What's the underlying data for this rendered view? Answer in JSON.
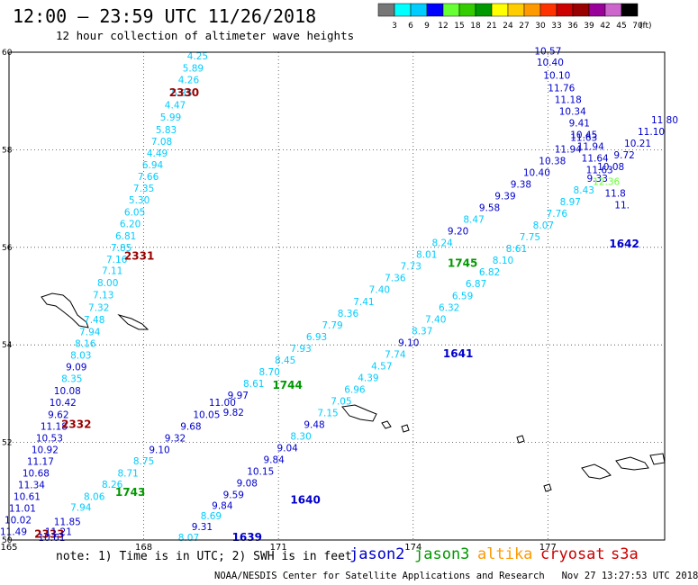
{
  "title": "12:00 – 23:59 UTC 11/26/2018",
  "subtitle": "12 hour collection of altimeter wave heights",
  "colorbar": {
    "unit": "(ft)",
    "ticks": [
      "3",
      "6",
      "9",
      "12",
      "15",
      "18",
      "21",
      "24",
      "27",
      "30",
      "33",
      "36",
      "39",
      "42",
      "45",
      "70"
    ],
    "colors": [
      "#777777",
      "#00ffff",
      "#00ccff",
      "#0000ff",
      "#66ff33",
      "#33cc00",
      "#009900",
      "#ffff00",
      "#ffcc00",
      "#ff9900",
      "#ff3300",
      "#cc0000",
      "#990000",
      "#990099",
      "#cc66cc",
      "#000000"
    ]
  },
  "axes": {
    "lon_ticks": [
      "165",
      "168",
      "171",
      "174",
      "177"
    ],
    "lat_ticks": [
      "60",
      "58",
      "56",
      "54",
      "52",
      "50"
    ]
  },
  "note": "note: 1) Time is in UTC; 2) SWH is in feet",
  "legend": [
    {
      "label": "jason2",
      "color": "#0000cc"
    },
    {
      "label": "jason3",
      "color": "#009900"
    },
    {
      "label": "altika",
      "color": "#ff9900"
    },
    {
      "label": "cryosat",
      "color": "#cc0000"
    },
    {
      "label": "s3a",
      "color": "#cc0000"
    }
  ],
  "credit": "NOAA/NESDIS Center for Satellite Applications and Research   Nov 27 13:27:53 UTC 2018",
  "tracks": [
    {
      "id": "cryosat-2330-2333",
      "time_labels": [
        {
          "text": "2330",
          "lon": 168.9,
          "lat": 59.1,
          "color": "#990000"
        },
        {
          "text": "2331",
          "lon": 167.9,
          "lat": 55.75,
          "color": "#990000"
        },
        {
          "text": "2332",
          "lon": 166.5,
          "lat": 52.3,
          "color": "#990000"
        },
        {
          "text": "2333",
          "lon": 165.9,
          "lat": 50.05,
          "color": "#990000"
        }
      ],
      "values": [
        {
          "v": "4.25",
          "lon": 169.2,
          "lat": 59.85,
          "color": "#00ccff"
        },
        {
          "v": "5.89",
          "lon": 169.1,
          "lat": 59.6,
          "color": "#00ccff"
        },
        {
          "v": "4.26",
          "lon": 169.0,
          "lat": 59.36,
          "color": "#00ccff"
        },
        {
          "v": "5.35",
          "lon": 168.85,
          "lat": 59.1,
          "color": "#00ccff"
        },
        {
          "v": "4.47",
          "lon": 168.7,
          "lat": 58.85,
          "color": "#00ccff"
        },
        {
          "v": "5.99",
          "lon": 168.6,
          "lat": 58.6,
          "color": "#00ccff"
        },
        {
          "v": "5.83",
          "lon": 168.5,
          "lat": 58.34,
          "color": "#00ccff"
        },
        {
          "v": "7.08",
          "lon": 168.4,
          "lat": 58.1,
          "color": "#00ccff"
        },
        {
          "v": "4.49",
          "lon": 168.3,
          "lat": 57.86,
          "color": "#00ccff"
        },
        {
          "v": "6.94",
          "lon": 168.2,
          "lat": 57.62,
          "color": "#00ccff"
        },
        {
          "v": "7.66",
          "lon": 168.1,
          "lat": 57.38,
          "color": "#00ccff"
        },
        {
          "v": "7.35",
          "lon": 168.0,
          "lat": 57.14,
          "color": "#00ccff"
        },
        {
          "v": "5.30",
          "lon": 167.9,
          "lat": 56.9,
          "color": "#00ccff"
        },
        {
          "v": "6.05",
          "lon": 167.8,
          "lat": 56.65,
          "color": "#00ccff"
        },
        {
          "v": "6.20",
          "lon": 167.7,
          "lat": 56.41,
          "color": "#00ccff"
        },
        {
          "v": "6.81",
          "lon": 167.6,
          "lat": 56.16,
          "color": "#00ccff"
        },
        {
          "v": "7.85",
          "lon": 167.5,
          "lat": 55.92,
          "color": "#00ccff"
        },
        {
          "v": "7.16",
          "lon": 167.4,
          "lat": 55.68,
          "color": "#00ccff"
        },
        {
          "v": "7.11",
          "lon": 167.3,
          "lat": 55.45,
          "color": "#00ccff"
        },
        {
          "v": "8.00",
          "lon": 167.2,
          "lat": 55.2,
          "color": "#00ccff"
        },
        {
          "v": "7.13",
          "lon": 167.1,
          "lat": 54.95,
          "color": "#00ccff"
        },
        {
          "v": "7.32",
          "lon": 167.0,
          "lat": 54.7,
          "color": "#00ccff"
        },
        {
          "v": "7.48",
          "lon": 166.9,
          "lat": 54.45,
          "color": "#00ccff"
        },
        {
          "v": "7.94",
          "lon": 166.8,
          "lat": 54.2,
          "color": "#00ccff"
        },
        {
          "v": "8.16",
          "lon": 166.7,
          "lat": 53.96,
          "color": "#00ccff"
        },
        {
          "v": "8.03",
          "lon": 166.6,
          "lat": 53.72,
          "color": "#00ccff"
        },
        {
          "v": "9.09",
          "lon": 166.5,
          "lat": 53.48,
          "color": "#0000cc"
        },
        {
          "v": "8.35",
          "lon": 166.4,
          "lat": 53.24,
          "color": "#00ccff"
        },
        {
          "v": "10.08",
          "lon": 166.3,
          "lat": 52.99,
          "color": "#0000cc"
        },
        {
          "v": "10.42",
          "lon": 166.2,
          "lat": 52.75,
          "color": "#0000cc"
        },
        {
          "v": "9.62",
          "lon": 166.1,
          "lat": 52.5,
          "color": "#0000cc"
        },
        {
          "v": "11.18",
          "lon": 166.0,
          "lat": 52.26,
          "color": "#0000cc"
        },
        {
          "v": "10.53",
          "lon": 165.9,
          "lat": 52.02,
          "color": "#0000cc"
        },
        {
          "v": "10.92",
          "lon": 165.8,
          "lat": 51.78,
          "color": "#0000cc"
        },
        {
          "v": "11.17",
          "lon": 165.7,
          "lat": 51.54,
          "color": "#0000cc"
        },
        {
          "v": "10.68",
          "lon": 165.6,
          "lat": 51.3,
          "color": "#0000cc"
        },
        {
          "v": "11.34",
          "lon": 165.5,
          "lat": 51.06,
          "color": "#0000cc"
        },
        {
          "v": "10.61",
          "lon": 165.4,
          "lat": 50.82,
          "color": "#0000cc"
        },
        {
          "v": "11.01",
          "lon": 165.3,
          "lat": 50.58,
          "color": "#0000cc"
        },
        {
          "v": "10.02",
          "lon": 165.2,
          "lat": 50.34,
          "color": "#0000cc"
        },
        {
          "v": "11.49",
          "lon": 165.1,
          "lat": 50.1,
          "color": "#0000cc"
        }
      ]
    },
    {
      "id": "jason3-1743-1745",
      "time_labels": [
        {
          "text": "1743",
          "lon": 167.7,
          "lat": 50.9,
          "color": "#009900"
        },
        {
          "text": "1744",
          "lon": 171.2,
          "lat": 53.1,
          "color": "#009900"
        },
        {
          "text": "1745",
          "lon": 175.1,
          "lat": 55.6,
          "color": "#009900"
        }
      ],
      "values": [
        {
          "v": "11.85",
          "lon": 166.3,
          "lat": 50.3,
          "color": "#0000cc"
        },
        {
          "v": "11.21",
          "lon": 166.1,
          "lat": 50.1,
          "color": "#0000cc"
        },
        {
          "v": "10.61",
          "lon": 165.95,
          "lat": 49.98,
          "color": "#0000cc"
        },
        {
          "v": "7.94",
          "lon": 166.6,
          "lat": 50.6,
          "color": "#00ccff"
        },
        {
          "v": "8.06",
          "lon": 166.9,
          "lat": 50.82,
          "color": "#00ccff"
        },
        {
          "v": "8.26",
          "lon": 167.3,
          "lat": 51.07,
          "color": "#00ccff"
        },
        {
          "v": "8.71",
          "lon": 167.65,
          "lat": 51.3,
          "color": "#00ccff"
        },
        {
          "v": "8.75",
          "lon": 168.0,
          "lat": 51.55,
          "color": "#00ccff"
        },
        {
          "v": "9.10",
          "lon": 168.35,
          "lat": 51.78,
          "color": "#0000cc"
        },
        {
          "v": "9.32",
          "lon": 168.7,
          "lat": 52.02,
          "color": "#0000cc"
        },
        {
          "v": "9.68",
          "lon": 169.05,
          "lat": 52.26,
          "color": "#0000cc"
        },
        {
          "v": "10.05",
          "lon": 169.4,
          "lat": 52.5,
          "color": "#0000cc"
        },
        {
          "v": "11.00",
          "lon": 169.75,
          "lat": 52.75,
          "color": "#0000cc"
        },
        {
          "v": "9.82",
          "lon": 170.0,
          "lat": 52.55,
          "color": "#0000cc"
        },
        {
          "v": "9.97",
          "lon": 170.1,
          "lat": 52.9,
          "color": "#0000cc"
        },
        {
          "v": "8.61",
          "lon": 170.45,
          "lat": 53.14,
          "color": "#00ccff"
        },
        {
          "v": "8.70",
          "lon": 170.8,
          "lat": 53.38,
          "color": "#00ccff"
        },
        {
          "v": "8.45",
          "lon": 171.15,
          "lat": 53.62,
          "color": "#00ccff"
        },
        {
          "v": "7.93",
          "lon": 171.5,
          "lat": 53.86,
          "color": "#00ccff"
        },
        {
          "v": "6.93",
          "lon": 171.85,
          "lat": 54.1,
          "color": "#00ccff"
        },
        {
          "v": "7.79",
          "lon": 172.2,
          "lat": 54.34,
          "color": "#00ccff"
        },
        {
          "v": "8.36",
          "lon": 172.55,
          "lat": 54.58,
          "color": "#00ccff"
        },
        {
          "v": "7.41",
          "lon": 172.9,
          "lat": 54.82,
          "color": "#00ccff"
        },
        {
          "v": "7.40",
          "lon": 173.25,
          "lat": 55.06,
          "color": "#00ccff"
        },
        {
          "v": "7.36",
          "lon": 173.6,
          "lat": 55.3,
          "color": "#00ccff"
        },
        {
          "v": "7.73",
          "lon": 173.95,
          "lat": 55.54,
          "color": "#00ccff"
        },
        {
          "v": "8.01",
          "lon": 174.3,
          "lat": 55.78,
          "color": "#00ccff"
        },
        {
          "v": "8.24",
          "lon": 174.65,
          "lat": 56.02,
          "color": "#00ccff"
        },
        {
          "v": "9.20",
          "lon": 175.0,
          "lat": 56.26,
          "color": "#0000cc"
        },
        {
          "v": "8.47",
          "lon": 175.35,
          "lat": 56.5,
          "color": "#00ccff"
        },
        {
          "v": "9.58",
          "lon": 175.7,
          "lat": 56.74,
          "color": "#0000cc"
        },
        {
          "v": "9.39",
          "lon": 176.05,
          "lat": 56.98,
          "color": "#0000cc"
        },
        {
          "v": "9.38",
          "lon": 176.4,
          "lat": 57.22,
          "color": "#0000cc"
        },
        {
          "v": "10.40",
          "lon": 176.75,
          "lat": 57.46,
          "color": "#0000cc"
        },
        {
          "v": "10.38",
          "lon": 177.1,
          "lat": 57.7,
          "color": "#0000cc"
        },
        {
          "v": "11.94",
          "lon": 177.45,
          "lat": 57.94,
          "color": "#0000cc"
        },
        {
          "v": "11.63",
          "lon": 177.8,
          "lat": 58.18,
          "color": "#0000cc"
        }
      ]
    },
    {
      "id": "jason2-1639-1642",
      "time_labels": [
        {
          "text": "1639",
          "lon": 170.3,
          "lat": 49.98,
          "color": "#0000cc"
        },
        {
          "text": "1640",
          "lon": 171.6,
          "lat": 50.75,
          "color": "#0000cc"
        },
        {
          "text": "1641",
          "lon": 175.0,
          "lat": 53.75,
          "color": "#0000cc"
        },
        {
          "text": "1642",
          "lon": 178.7,
          "lat": 56.0,
          "color": "#0000cc"
        }
      ],
      "values": [
        {
          "v": "8.07",
          "lon": 169.0,
          "lat": 49.98,
          "color": "#00ccff"
        },
        {
          "v": "9.31",
          "lon": 169.3,
          "lat": 50.2,
          "color": "#0000cc"
        },
        {
          "v": "8.69",
          "lon": 169.5,
          "lat": 50.42,
          "color": "#00ccff"
        },
        {
          "v": "9.84",
          "lon": 169.75,
          "lat": 50.64,
          "color": "#0000cc"
        },
        {
          "v": "9.59",
          "lon": 170.0,
          "lat": 50.86,
          "color": "#0000cc"
        },
        {
          "v": "9.08",
          "lon": 170.3,
          "lat": 51.1,
          "color": "#0000cc"
        },
        {
          "v": "10.15",
          "lon": 170.6,
          "lat": 51.34,
          "color": "#0000cc"
        },
        {
          "v": "9.84",
          "lon": 170.9,
          "lat": 51.58,
          "color": "#0000cc"
        },
        {
          "v": "9.04",
          "lon": 171.2,
          "lat": 51.82,
          "color": "#0000cc"
        },
        {
          "v": "8.30",
          "lon": 171.5,
          "lat": 52.06,
          "color": "#00ccff"
        },
        {
          "v": "9.48",
          "lon": 171.8,
          "lat": 52.3,
          "color": "#0000cc"
        },
        {
          "v": "7.15",
          "lon": 172.1,
          "lat": 52.54,
          "color": "#00ccff"
        },
        {
          "v": "7.05",
          "lon": 172.4,
          "lat": 52.78,
          "color": "#00ccff"
        },
        {
          "v": "6.96",
          "lon": 172.7,
          "lat": 53.02,
          "color": "#00ccff"
        },
        {
          "v": "4.39",
          "lon": 173.0,
          "lat": 53.26,
          "color": "#00ccff"
        },
        {
          "v": "4.57",
          "lon": 173.3,
          "lat": 53.5,
          "color": "#00ccff"
        },
        {
          "v": "7.74",
          "lon": 173.6,
          "lat": 53.74,
          "color": "#00ccff"
        },
        {
          "v": "9.10",
          "lon": 173.9,
          "lat": 53.98,
          "color": "#0000cc"
        },
        {
          "v": "8.37",
          "lon": 174.2,
          "lat": 54.22,
          "color": "#00ccff"
        },
        {
          "v": "7.40",
          "lon": 174.5,
          "lat": 54.46,
          "color": "#00ccff"
        },
        {
          "v": "6.32",
          "lon": 174.8,
          "lat": 54.7,
          "color": "#00ccff"
        },
        {
          "v": "6.59",
          "lon": 175.1,
          "lat": 54.94,
          "color": "#00ccff"
        },
        {
          "v": "6.87",
          "lon": 175.4,
          "lat": 55.18,
          "color": "#00ccff"
        },
        {
          "v": "6.82",
          "lon": 175.7,
          "lat": 55.42,
          "color": "#00ccff"
        },
        {
          "v": "8.10",
          "lon": 176.0,
          "lat": 55.66,
          "color": "#00ccff"
        },
        {
          "v": "8.61",
          "lon": 176.3,
          "lat": 55.9,
          "color": "#00ccff"
        },
        {
          "v": "7.75",
          "lon": 176.6,
          "lat": 56.14,
          "color": "#00ccff"
        },
        {
          "v": "8.07",
          "lon": 176.9,
          "lat": 56.38,
          "color": "#00ccff"
        },
        {
          "v": "7.76",
          "lon": 177.2,
          "lat": 56.62,
          "color": "#00ccff"
        },
        {
          "v": "8.97",
          "lon": 177.5,
          "lat": 56.86,
          "color": "#00ccff"
        },
        {
          "v": "8.43",
          "lon": 177.8,
          "lat": 57.1,
          "color": "#00ccff"
        },
        {
          "v": "9.33",
          "lon": 178.1,
          "lat": 57.34,
          "color": "#0000cc"
        },
        {
          "v": "10.08",
          "lon": 178.4,
          "lat": 57.58,
          "color": "#0000cc"
        },
        {
          "v": "9.72",
          "lon": 178.7,
          "lat": 57.82,
          "color": "#0000cc"
        },
        {
          "v": "10.21",
          "lon": 179.0,
          "lat": 58.06,
          "color": "#0000cc"
        },
        {
          "v": "11.10",
          "lon": 179.3,
          "lat": 58.3,
          "color": "#0000cc"
        },
        {
          "v": "11.80",
          "lon": 179.6,
          "lat": 58.54,
          "color": "#0000cc"
        }
      ]
    },
    {
      "id": "jason2-north-col",
      "time_labels": [],
      "values": [
        {
          "v": "10.57",
          "lon": 177.0,
          "lat": 59.95,
          "color": "#0000cc"
        },
        {
          "v": "10.40",
          "lon": 177.05,
          "lat": 59.72,
          "color": "#0000cc"
        },
        {
          "v": "10.10",
          "lon": 177.2,
          "lat": 59.46,
          "color": "#0000cc"
        },
        {
          "v": "11.76",
          "lon": 177.3,
          "lat": 59.2,
          "color": "#0000cc"
        },
        {
          "v": "11.18",
          "lon": 177.45,
          "lat": 58.96,
          "color": "#0000cc"
        },
        {
          "v": "10.34",
          "lon": 177.55,
          "lat": 58.72,
          "color": "#0000cc"
        },
        {
          "v": "9.41",
          "lon": 177.7,
          "lat": 58.48,
          "color": "#0000cc"
        },
        {
          "v": "10.45",
          "lon": 177.8,
          "lat": 58.24,
          "color": "#0000cc"
        },
        {
          "v": "11.94",
          "lon": 177.95,
          "lat": 58.0,
          "color": "#0000cc"
        },
        {
          "v": "11.64",
          "lon": 178.05,
          "lat": 57.76,
          "color": "#0000cc"
        },
        {
          "v": "11.63",
          "lon": 178.15,
          "lat": 57.52,
          "color": "#0000cc"
        },
        {
          "v": "12.36",
          "lon": 178.3,
          "lat": 57.28,
          "color": "#66ff33"
        },
        {
          "v": "11.8",
          "lon": 178.5,
          "lat": 57.04,
          "color": "#0000cc"
        },
        {
          "v": "11.",
          "lon": 178.65,
          "lat": 56.8,
          "color": "#0000cc"
        }
      ]
    }
  ]
}
